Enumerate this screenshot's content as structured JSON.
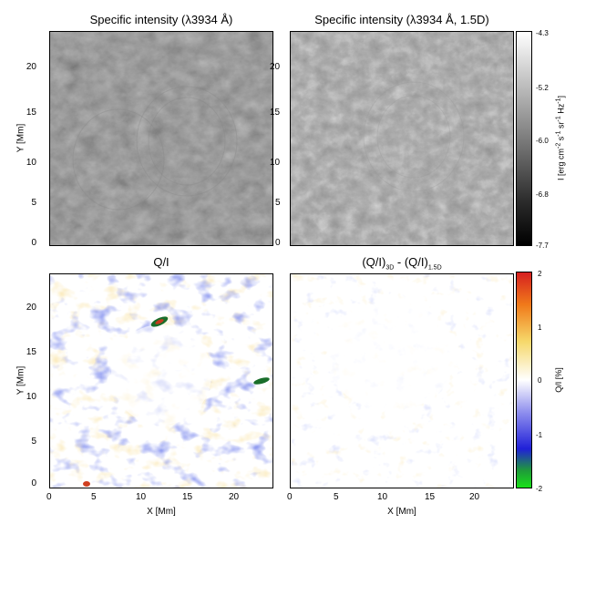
{
  "panels": {
    "top_left_title": "Specific intensity (λ3934 Å)",
    "top_right_title": "Specific intensity (λ3934 Å, 1.5D)",
    "bottom_left_title": "Q/I",
    "bottom_right_title": {
      "main": "(Q/I)",
      "sub1": "3D",
      "mid": " - (Q/I)",
      "sub2": "1.5D"
    }
  },
  "axes": {
    "x_title": "X [Mm]",
    "y_title": "Y [Mm]",
    "x_ticks": [
      "0",
      "5",
      "10",
      "15",
      "20"
    ],
    "y_ticks": [
      "0",
      "5",
      "10",
      "15",
      "20"
    ]
  },
  "colorbar_intensity": {
    "label": {
      "main": "I [erg cm",
      "s1": "-2",
      "b": " s",
      "s2": "-1",
      "c": " sr",
      "s3": "-1",
      "d": " Hz",
      "s4": "-1",
      "e": "]"
    },
    "ticks": [
      "-4.3",
      "-5.2",
      "-6.0",
      "-6.8",
      "-7.7"
    ],
    "colormap": "grayscale"
  },
  "colorbar_qi": {
    "label": "Q/I [%]",
    "ticks": [
      "2",
      "1",
      "0",
      "-1",
      "-2"
    ],
    "colormap": "red-orange-white-blue-green"
  }
}
